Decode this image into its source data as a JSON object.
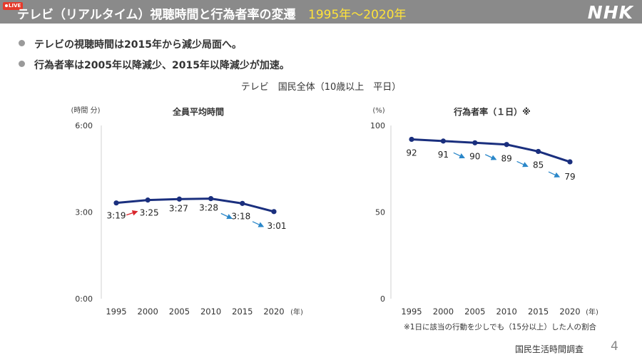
{
  "header": {
    "live_badge": "LIVE",
    "title": "テレビ（リアルタイム）視聴時間と行為者率の変遷",
    "period": "1995年～2020年",
    "logo": "NHK"
  },
  "bullets": [
    "テレビの視聴時間は2015年から減少局面へ。",
    "行為者率は2005年以降減少、2015年以降減少が加速。"
  ],
  "subtitle": "テレビ　国民全体（10歳以上　平日）",
  "footer": {
    "source": "国民生活時間調査",
    "page": "4"
  },
  "colors": {
    "line": "#1a2f7e",
    "arrow_up": "#d9262c",
    "arrow_down": "#2a87c9",
    "axis": "#d0d0d0"
  },
  "chart_data": [
    {
      "type": "line",
      "title": "全員平均時間",
      "ylabel": "(時間 分)",
      "xlabel": "(年)",
      "categories": [
        "1995",
        "2000",
        "2005",
        "2010",
        "2015",
        "2020"
      ],
      "values": [
        199,
        205,
        207,
        208,
        198,
        181
      ],
      "data_labels": [
        "3:19",
        "3:25",
        "3:27",
        "3:28",
        "3:18",
        "3:01"
      ],
      "ylim": [
        0,
        360
      ],
      "yticks": [
        0,
        180,
        360
      ],
      "ytick_labels": [
        "0:00",
        "3:00",
        "6:00"
      ],
      "trend_arrows": [
        "",
        "up",
        "",
        "",
        "down",
        "down"
      ],
      "grid": false
    },
    {
      "type": "line",
      "title": "行為者率（１日）※",
      "ylabel": "(%)",
      "xlabel": "(年)",
      "categories": [
        "1995",
        "2000",
        "2005",
        "2010",
        "2015",
        "2020"
      ],
      "values": [
        92,
        91,
        90,
        89,
        85,
        79
      ],
      "data_labels": [
        "92",
        "91",
        "90",
        "89",
        "85",
        "79"
      ],
      "ylim": [
        0,
        100
      ],
      "yticks": [
        0,
        50,
        100
      ],
      "ytick_labels": [
        "0",
        "50",
        "100"
      ],
      "trend_arrows": [
        "",
        "",
        "down",
        "down",
        "down",
        "down"
      ],
      "note": "※1日に該当の行動を少しでも（15分以上）した人の割合",
      "grid": false
    }
  ]
}
